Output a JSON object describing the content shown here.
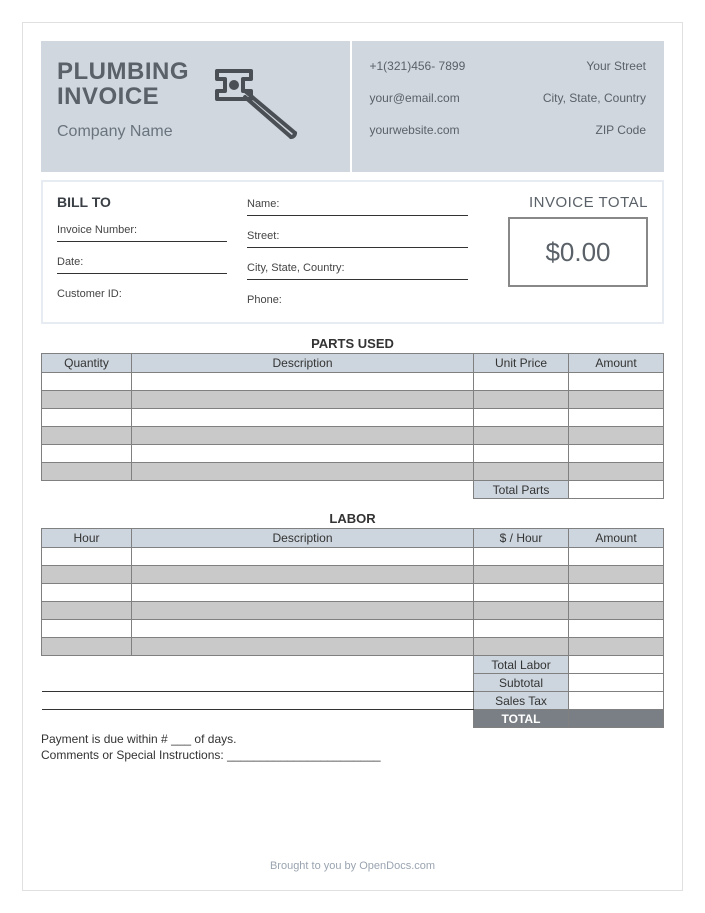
{
  "header": {
    "title_line1": "PLUMBING",
    "title_line2": "INVOICE",
    "company": "Company Name",
    "contact": {
      "phone": "+1(321)456- 7899",
      "email": "your@email.com",
      "website": "yourwebsite.com",
      "street": "Your Street",
      "city": "City, State, Country",
      "zip": "ZIP Code"
    }
  },
  "billto": {
    "heading": "BILL TO",
    "left_fields": [
      "Invoice Number:",
      "Date:",
      "Customer ID:"
    ],
    "mid_fields": [
      "Name:",
      "Street:",
      "City, State, Country:",
      "Phone:"
    ],
    "total_label": "INVOICE TOTAL",
    "total_value": "$0.00"
  },
  "parts": {
    "title": "PARTS USED",
    "columns": [
      "Quantity",
      "Description",
      "Unit Price",
      "Amount"
    ],
    "row_count": 6,
    "total_label": "Total Parts"
  },
  "labor": {
    "title": "LABOR",
    "columns": [
      "Hour",
      "Description",
      "$ / Hour",
      "Amount"
    ],
    "row_count": 6,
    "subtotal_labels": [
      "Total Labor",
      "Subtotal",
      "Sales Tax",
      "TOTAL"
    ]
  },
  "footer": {
    "payment": "Payment is due within # ___ of days.",
    "comments": "Comments or Special Instructions: _______________________",
    "credit": "Brought to you by OpenDocs.com"
  },
  "colors": {
    "header_bg": "#d0d7de",
    "th_bg": "#cdd6de",
    "alt_row": "#c9c9c9",
    "border": "#808080",
    "dark_total": "#7a7f85",
    "text_muted": "#5a6168"
  }
}
